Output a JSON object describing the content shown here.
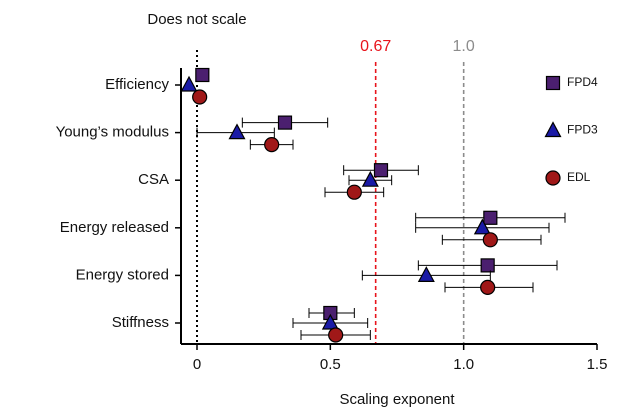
{
  "chart_data": {
    "type": "dot_errorbar",
    "categories": [
      "Efficiency",
      "Young’s modulus",
      "CSA",
      "Energy released",
      "Energy stored",
      "Stiffness"
    ],
    "x_label": "Scaling exponent",
    "xlim": [
      -0.06,
      1.5
    ],
    "xticks": [
      0,
      0.5,
      {
        "value": 1,
        "label": "1.0"
      },
      1.5
    ],
    "reference_lines": [
      {
        "value": 0,
        "label": "Does not scale",
        "color": "#000000",
        "style": "dotted"
      },
      {
        "value": 0.67,
        "label": "0.67",
        "color": "#e8141c",
        "style": "dashed"
      },
      {
        "value": 1,
        "label": "1.0",
        "color": "#8c8c8c",
        "style": "dashed"
      }
    ],
    "legend": "right",
    "series": [
      {
        "name": "FPD4",
        "color": "#4b1f6f",
        "marker": "square",
        "values": [
          0.02,
          0.33,
          0.69,
          1.1,
          1.09,
          0.5
        ],
        "ci": [
          null,
          [
            0.17,
            0.49
          ],
          [
            0.55,
            0.83
          ],
          [
            0.82,
            1.38
          ],
          [
            0.83,
            1.35
          ],
          [
            0.42,
            0.59
          ]
        ]
      },
      {
        "name": "FPD3",
        "color": "#1a1aa6",
        "marker": "triangle",
        "values": [
          -0.03,
          0.15,
          0.65,
          1.07,
          0.86,
          0.5
        ],
        "ci": [
          null,
          [
            0.0,
            0.29
          ],
          [
            0.57,
            0.73
          ],
          [
            0.82,
            1.32
          ],
          [
            0.62,
            1.1
          ],
          [
            0.36,
            0.64
          ]
        ]
      },
      {
        "name": "EDL",
        "color": "#a01818",
        "marker": "circle",
        "values": [
          0.01,
          0.28,
          0.59,
          1.1,
          1.09,
          0.52
        ],
        "ci": [
          null,
          [
            0.2,
            0.36
          ],
          [
            0.48,
            0.7
          ],
          [
            0.92,
            1.29
          ],
          [
            0.93,
            1.26
          ],
          [
            0.39,
            0.65
          ]
        ]
      }
    ]
  }
}
